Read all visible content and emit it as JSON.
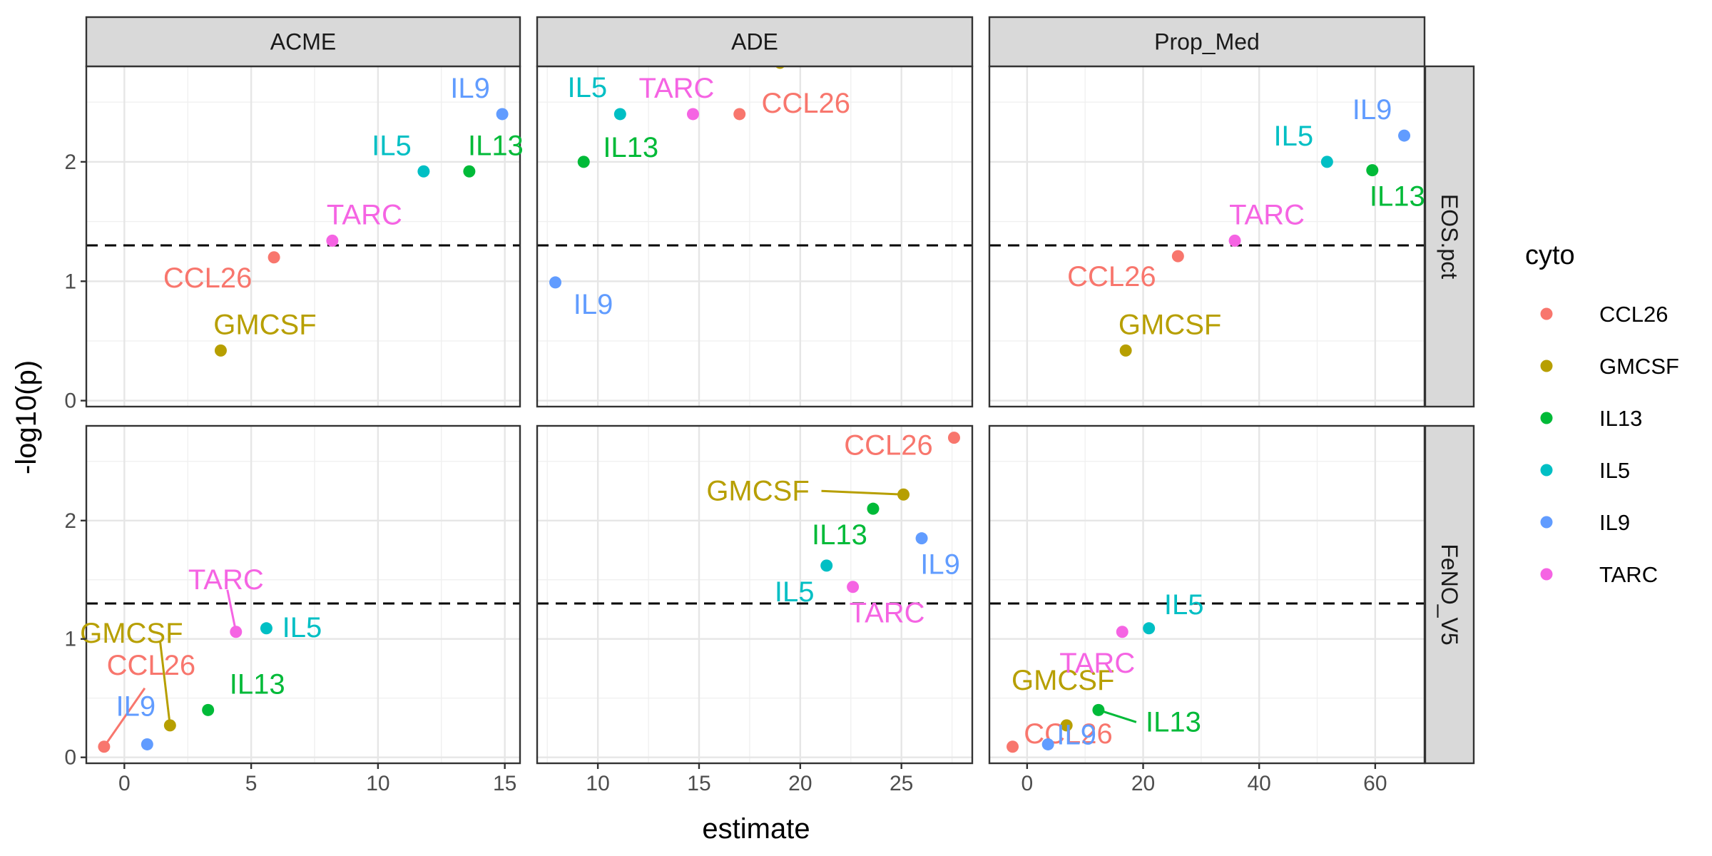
{
  "chart_data": {
    "type": "scatter",
    "xlabel": "estimate",
    "ylabel": "-log10(p)",
    "ylim": [
      -0.05,
      2.8
    ],
    "yticks": [
      0,
      1,
      2
    ],
    "threshold_y": 1.3,
    "grid": true,
    "legend": {
      "title": "cyto",
      "placement": "right",
      "entries": [
        "CCL26",
        "GMCSF",
        "IL13",
        "IL5",
        "IL9",
        "TARC"
      ]
    },
    "colors": {
      "CCL26": "#F8766D",
      "GMCSF": "#B79F00",
      "IL13": "#00BA38",
      "IL5": "#00BFC4",
      "IL9": "#619CFF",
      "TARC": "#F564E3"
    },
    "columns": [
      {
        "name": "ACME",
        "xlim": [
          -1.5,
          15.6
        ],
        "xticks": [
          0,
          5,
          10,
          15
        ]
      },
      {
        "name": "ADE",
        "xlim": [
          7.0,
          28.5
        ],
        "xticks": [
          10,
          15,
          20,
          25
        ]
      },
      {
        "name": "Prop_Med",
        "xlim": [
          -6.5,
          68.5
        ],
        "xticks": [
          0,
          20,
          40,
          60
        ]
      }
    ],
    "rows": [
      {
        "name": "EOS.pct"
      },
      {
        "name": "FeNO_V5"
      }
    ],
    "panels": [
      {
        "column": "ACME",
        "row": "EOS.pct",
        "points": [
          {
            "cyto": "CCL26",
            "x": 5.9,
            "y": 1.2
          },
          {
            "cyto": "GMCSF",
            "x": 3.8,
            "y": 0.42
          },
          {
            "cyto": "IL13",
            "x": 13.6,
            "y": 1.92
          },
          {
            "cyto": "IL5",
            "x": 11.8,
            "y": 1.92
          },
          {
            "cyto": "IL9",
            "x": 14.9,
            "y": 2.4
          },
          {
            "cyto": "TARC",
            "x": 8.2,
            "y": 1.34
          }
        ]
      },
      {
        "column": "ADE",
        "row": "EOS.pct",
        "points": [
          {
            "cyto": "CCL26",
            "x": 17.0,
            "y": 2.4
          },
          {
            "cyto": "GMCSF",
            "x": 19.0,
            "y": 2.83
          },
          {
            "cyto": "IL13",
            "x": 9.3,
            "y": 2.0
          },
          {
            "cyto": "IL5",
            "x": 11.1,
            "y": 2.4
          },
          {
            "cyto": "IL9",
            "x": 7.9,
            "y": 0.99
          },
          {
            "cyto": "TARC",
            "x": 14.7,
            "y": 2.4
          }
        ]
      },
      {
        "column": "Prop_Med",
        "row": "EOS.pct",
        "points": [
          {
            "cyto": "CCL26",
            "x": 26.0,
            "y": 1.21
          },
          {
            "cyto": "GMCSF",
            "x": 17.0,
            "y": 0.42
          },
          {
            "cyto": "IL13",
            "x": 59.5,
            "y": 1.93
          },
          {
            "cyto": "IL5",
            "x": 51.7,
            "y": 2.0
          },
          {
            "cyto": "IL9",
            "x": 65.0,
            "y": 2.22
          },
          {
            "cyto": "TARC",
            "x": 35.8,
            "y": 1.34
          }
        ]
      },
      {
        "column": "ACME",
        "row": "FeNO_V5",
        "points": [
          {
            "cyto": "CCL26",
            "x": -0.8,
            "y": 0.09
          },
          {
            "cyto": "GMCSF",
            "x": 1.8,
            "y": 0.27
          },
          {
            "cyto": "IL13",
            "x": 3.3,
            "y": 0.4
          },
          {
            "cyto": "IL5",
            "x": 5.6,
            "y": 1.09
          },
          {
            "cyto": "IL9",
            "x": 0.9,
            "y": 0.11
          },
          {
            "cyto": "TARC",
            "x": 4.4,
            "y": 1.06
          }
        ]
      },
      {
        "column": "ADE",
        "row": "FeNO_V5",
        "points": [
          {
            "cyto": "CCL26",
            "x": 27.6,
            "y": 2.7
          },
          {
            "cyto": "GMCSF",
            "x": 25.1,
            "y": 2.22
          },
          {
            "cyto": "IL13",
            "x": 23.6,
            "y": 2.1
          },
          {
            "cyto": "IL5",
            "x": 21.3,
            "y": 1.62
          },
          {
            "cyto": "IL9",
            "x": 26.0,
            "y": 1.85
          },
          {
            "cyto": "TARC",
            "x": 22.6,
            "y": 1.44
          }
        ]
      },
      {
        "column": "Prop_Med",
        "row": "FeNO_V5",
        "points": [
          {
            "cyto": "CCL26",
            "x": -2.5,
            "y": 0.09
          },
          {
            "cyto": "GMCSF",
            "x": 6.8,
            "y": 0.27
          },
          {
            "cyto": "IL13",
            "x": 12.3,
            "y": 0.4
          },
          {
            "cyto": "IL5",
            "x": 21.0,
            "y": 1.09
          },
          {
            "cyto": "IL9",
            "x": 3.6,
            "y": 0.11
          },
          {
            "cyto": "TARC",
            "x": 16.4,
            "y": 1.06
          }
        ]
      }
    ]
  }
}
